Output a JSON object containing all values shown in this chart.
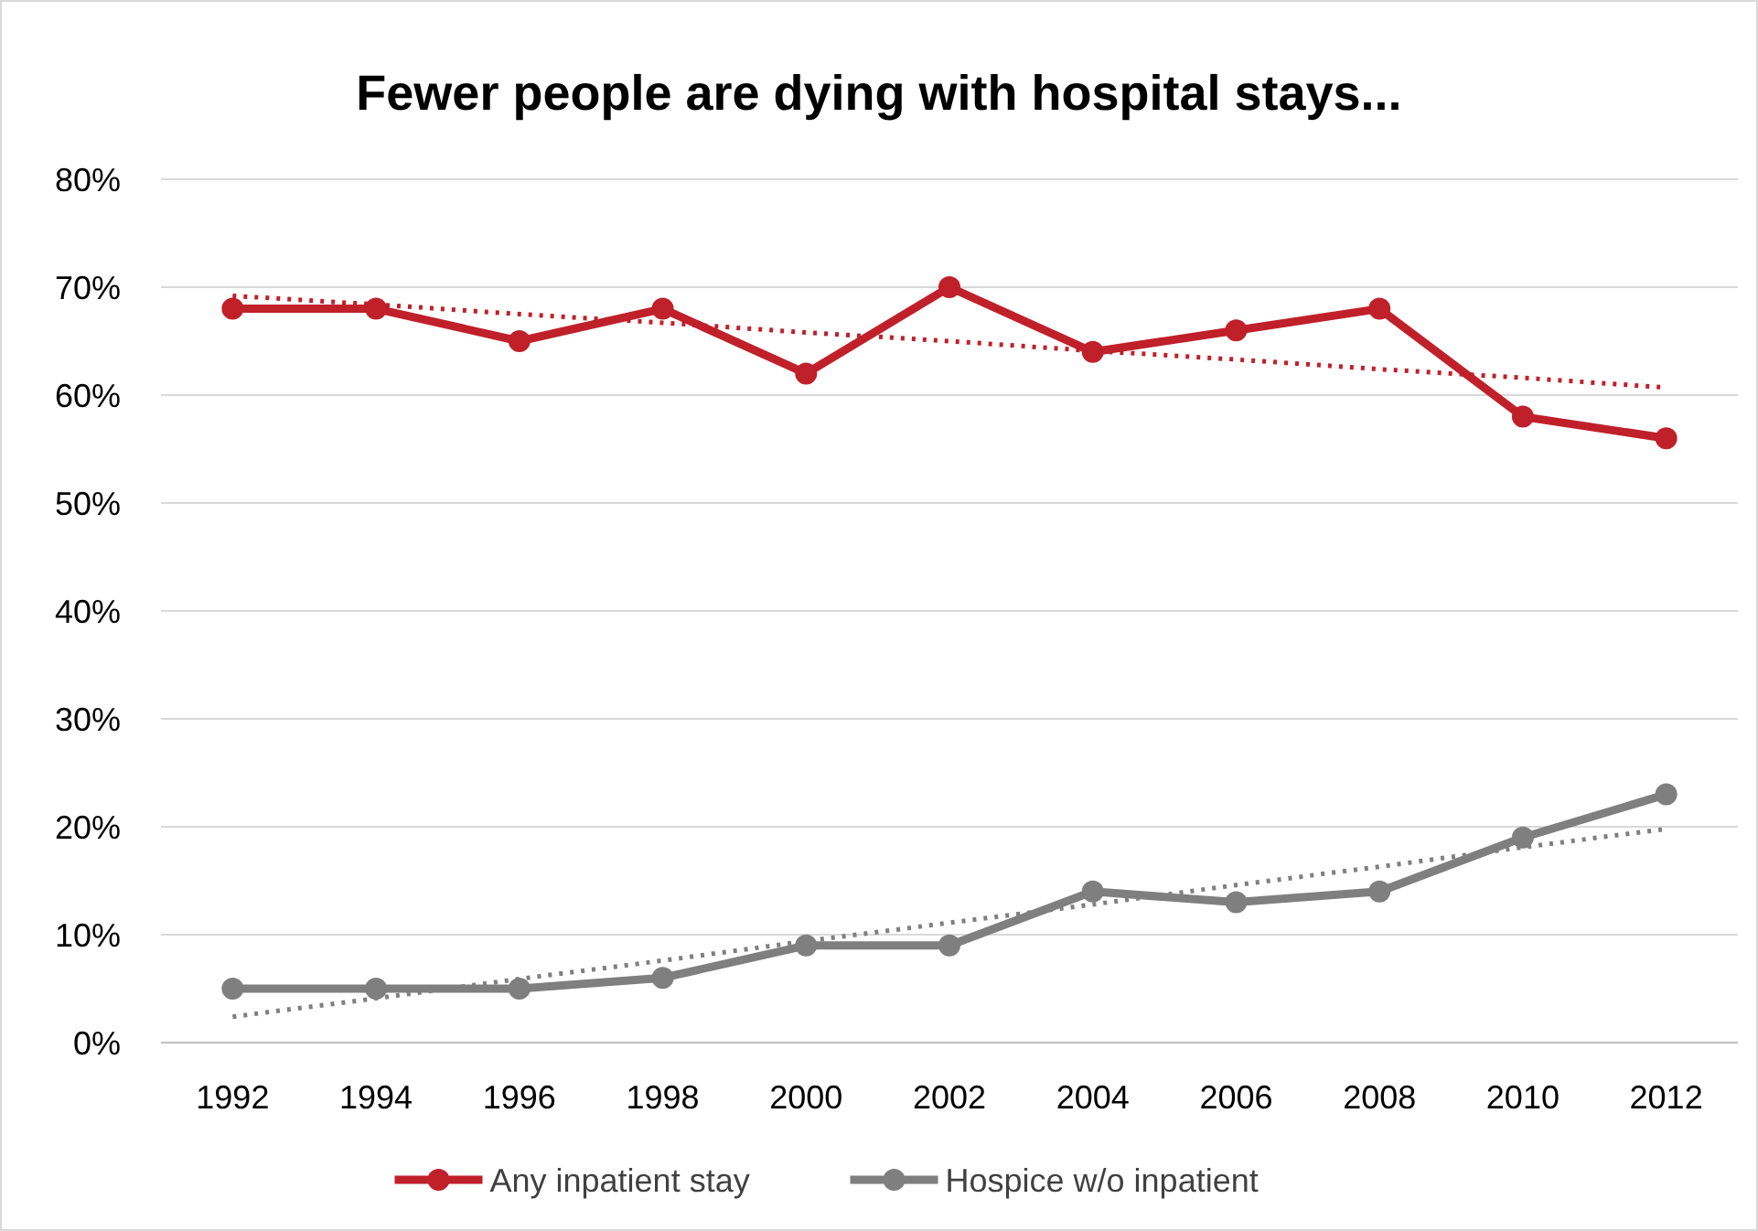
{
  "chart_data": {
    "type": "line",
    "title": "Fewer people are dying with hospital stays...",
    "categories": [
      "1992",
      "1994",
      "1996",
      "1998",
      "2000",
      "2002",
      "2004",
      "2006",
      "2008",
      "2010",
      "2012"
    ],
    "series": [
      {
        "name": "Any inpatient stay",
        "color": "#c0202a",
        "values": [
          68,
          68,
          65,
          68,
          62,
          70,
          64,
          66,
          68,
          58,
          56
        ],
        "marker": "circle",
        "line_style": "solid"
      },
      {
        "name": "Hospice w/o inpatient",
        "color": "#7f7f7f",
        "values": [
          5,
          5,
          5,
          6,
          9,
          9,
          14,
          13,
          14,
          19,
          23
        ],
        "marker": "circle",
        "line_style": "solid"
      },
      {
        "type": "line",
        "color": "#c0202a",
        "values": [
          69.2,
          68.4,
          67.5,
          66.7,
          65.8,
          65.0,
          64.1,
          63.3,
          62.4,
          61.6,
          60.7
        ],
        "marker": "none",
        "line_style": "dotted"
      },
      {
        "type": "line",
        "color": "#7f7f7f",
        "values": [
          2.4,
          4.1,
          5.9,
          7.6,
          9.4,
          11.1,
          12.8,
          14.6,
          16.3,
          18.1,
          19.8
        ],
        "marker": "none",
        "line_style": "dotted"
      }
    ],
    "ylim": [
      0,
      80
    ],
    "yticks": [
      {
        "value": 0,
        "label": "0%"
      },
      {
        "value": 10,
        "label": "10%"
      },
      {
        "value": 20,
        "label": "20%"
      },
      {
        "value": 30,
        "label": "30%"
      },
      {
        "value": 40,
        "label": "40%"
      },
      {
        "value": 50,
        "label": "50%"
      },
      {
        "value": 60,
        "label": "60%"
      },
      {
        "value": 70,
        "label": "70%"
      },
      {
        "value": 80,
        "label": "80%"
      }
    ],
    "grid": "y",
    "legend": "bottom"
  }
}
